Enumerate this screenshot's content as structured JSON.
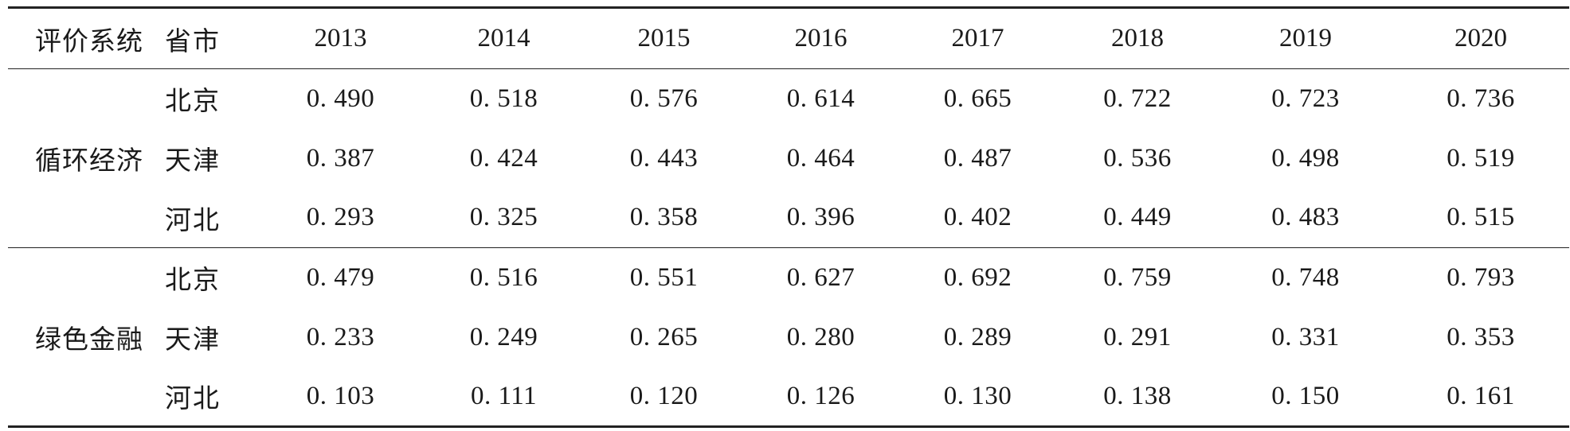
{
  "table": {
    "headers": {
      "system": "评价系统",
      "province": "省市",
      "years": [
        "2013",
        "2014",
        "2015",
        "2016",
        "2017",
        "2018",
        "2019",
        "2020"
      ]
    },
    "groups": [
      {
        "system": "循环经济",
        "rows": [
          {
            "province": "北京",
            "values": [
              "0. 490",
              "0. 518",
              "0. 576",
              "0. 614",
              "0. 665",
              "0. 722",
              "0. 723",
              "0. 736"
            ]
          },
          {
            "province": "天津",
            "values": [
              "0. 387",
              "0. 424",
              "0. 443",
              "0. 464",
              "0. 487",
              "0. 536",
              "0. 498",
              "0. 519"
            ]
          },
          {
            "province": "河北",
            "values": [
              "0. 293",
              "0. 325",
              "0. 358",
              "0. 396",
              "0. 402",
              "0. 449",
              "0. 483",
              "0. 515"
            ]
          }
        ]
      },
      {
        "system": "绿色金融",
        "rows": [
          {
            "province": "北京",
            "values": [
              "0. 479",
              "0. 516",
              "0. 551",
              "0. 627",
              "0. 692",
              "0. 759",
              "0. 748",
              "0. 793"
            ]
          },
          {
            "province": "天津",
            "values": [
              "0. 233",
              "0. 249",
              "0. 265",
              "0. 280",
              "0. 289",
              "0. 291",
              "0. 331",
              "0. 353"
            ]
          },
          {
            "province": "河北",
            "values": [
              "0. 103",
              "0. 111",
              "0. 120",
              "0. 126",
              "0. 130",
              "0. 138",
              "0. 150",
              "0. 161"
            ]
          }
        ]
      }
    ]
  }
}
